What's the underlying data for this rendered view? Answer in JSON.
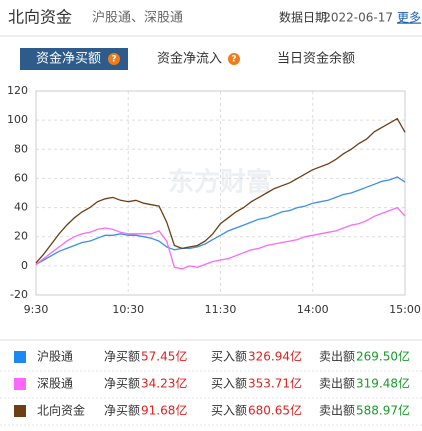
{
  "header": {
    "title": "北向资金",
    "subtitle": "沪股通、深股通",
    "date_label": "数据日期:",
    "date": "2022-06-17",
    "more": "更多"
  },
  "tabs": [
    {
      "label": "资金净买额",
      "help": "?"
    },
    {
      "label": "资金净流入",
      "help": "?"
    },
    {
      "label": "当日资金余额"
    }
  ],
  "chart_data": {
    "type": "line",
    "watermark": "东方财富",
    "x": [
      0,
      5,
      10,
      15,
      20,
      25,
      30,
      35,
      40,
      45,
      50,
      55,
      60,
      65,
      70,
      75,
      80,
      85,
      90,
      95,
      100,
      105,
      110,
      115,
      120,
      125,
      130,
      135,
      140,
      145,
      150,
      155,
      160,
      165,
      170,
      175,
      180,
      185,
      190,
      195,
      200,
      205,
      210,
      215,
      220,
      225,
      230,
      235,
      240
    ],
    "xlim": [
      0,
      240
    ],
    "xticks": [
      {
        "value": 0,
        "label": "9:30"
      },
      {
        "value": 60,
        "label": "10:30"
      },
      {
        "value": 120,
        "label": "11:30"
      },
      {
        "value": 180,
        "label": "14:00"
      },
      {
        "value": 240,
        "label": "15:00"
      }
    ],
    "ylim": [
      -20,
      120
    ],
    "yticks": [
      -20,
      0,
      20,
      40,
      60,
      80,
      100,
      120
    ],
    "grid": true,
    "series": [
      {
        "name": "沪股通",
        "color": "#3d8fe8",
        "legend_color": "#1e88f0",
        "values": [
          1,
          4,
          7,
          10,
          12,
          14,
          16,
          17,
          19,
          21,
          21,
          22,
          21,
          21,
          20,
          19,
          17,
          13,
          11,
          12,
          12,
          13,
          15,
          18,
          21,
          24,
          26,
          28,
          30,
          32,
          33,
          35,
          37,
          38,
          40,
          41,
          43,
          44,
          45,
          47,
          49,
          50,
          52,
          54,
          56,
          58,
          59,
          61,
          57.45
        ]
      },
      {
        "name": "深股通",
        "color": "#f76cf7",
        "legend_color": "#ff66ff",
        "values": [
          1,
          5,
          9,
          13,
          17,
          20,
          22,
          23,
          25,
          26,
          25,
          23,
          22,
          22,
          22,
          22,
          24,
          17,
          -1,
          -2,
          0,
          -1,
          1,
          3,
          4,
          5,
          7,
          9,
          11,
          12,
          14,
          15,
          16,
          17,
          18,
          20,
          21,
          22,
          23,
          24,
          26,
          28,
          29,
          31,
          34,
          36,
          38,
          40,
          34.23
        ]
      },
      {
        "name": "北向资金",
        "color": "#6e3f14",
        "legend_color": "#6e3f14",
        "values": [
          2,
          8,
          15,
          22,
          28,
          33,
          37,
          40,
          44,
          46,
          47,
          45,
          44,
          45,
          43,
          42,
          41,
          30,
          14,
          12,
          13,
          14,
          17,
          22,
          29,
          33,
          37,
          40,
          44,
          47,
          50,
          53,
          55,
          57,
          60,
          63,
          66,
          68,
          70,
          73,
          77,
          80,
          84,
          87,
          92,
          95,
          98,
          101,
          91.68
        ]
      }
    ]
  },
  "legend": {
    "rows": [
      {
        "net_label": "净买额",
        "net": "57.45亿",
        "buy_label": "买入额",
        "buy": "326.94亿",
        "sell_label": "卖出额",
        "sell": "269.50亿"
      },
      {
        "net_label": "净买额",
        "net": "34.23亿",
        "buy_label": "买入额",
        "buy": "353.71亿",
        "sell_label": "卖出额",
        "sell": "319.48亿"
      },
      {
        "net_label": "净买额",
        "net": "91.68亿",
        "buy_label": "买入额",
        "buy": "680.65亿",
        "sell_label": "卖出额",
        "sell": "588.97亿"
      }
    ]
  }
}
